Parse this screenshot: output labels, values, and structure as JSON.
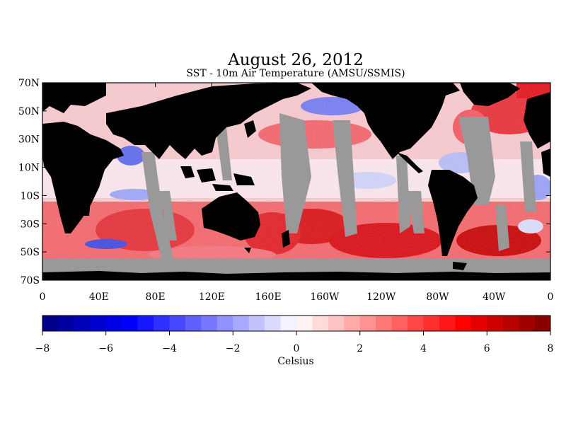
{
  "title": "August 26, 2012",
  "subtitle": "SST - 10m Air Temperature (AMSU/SSMIS)",
  "map": {
    "lat_labels": [
      "70N",
      "50N",
      "30N",
      "10N",
      "10S",
      "30S",
      "50S",
      "70S"
    ],
    "lon_labels": [
      "0",
      "40E",
      "80E",
      "120E",
      "160E",
      "160W",
      "120W",
      "80W",
      "40W",
      "0"
    ],
    "colors": {
      "land": "#000000",
      "no_data": "#999999"
    }
  },
  "colorbar": {
    "tick_labels": [
      "−8",
      "−6",
      "−4",
      "−2",
      "0",
      "2",
      "4",
      "6",
      "8"
    ],
    "unit_label": "Celsius",
    "min": -8,
    "max": 8,
    "bins": 32,
    "low_color": "#000080",
    "mid_color": "#ffffff",
    "high_color": "#7d0000"
  }
}
